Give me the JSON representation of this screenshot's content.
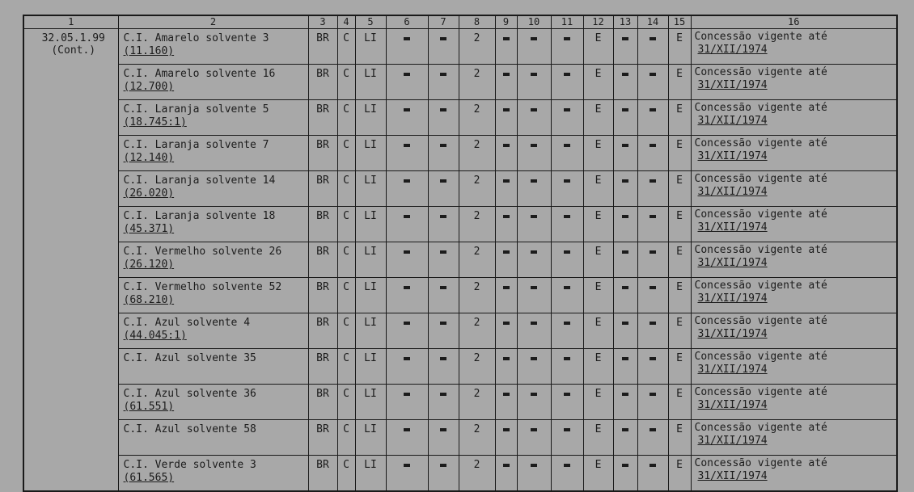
{
  "headers": [
    "1",
    "2",
    "3",
    "4",
    "5",
    "6",
    "7",
    "8",
    "9",
    "10",
    "11",
    "12",
    "13",
    "14",
    "15",
    "16"
  ],
  "group": {
    "code": "32.05.1.99",
    "note": "(Cont.)"
  },
  "columns_common": {
    "c3": "BR",
    "c4": "C",
    "c5": "LI",
    "c8": "2",
    "c12": "E",
    "c15": "E",
    "dash": "-"
  },
  "rows": [
    {
      "name": "C.I. Amarelo solvente 3",
      "code": "(11.160)"
    },
    {
      "name": "C.I. Amarelo solvente 16",
      "code": "(12.700)"
    },
    {
      "name": "C.I. Laranja solvente 5",
      "code": "(18.745:1)"
    },
    {
      "name": "C.I. Laranja solvente 7",
      "code": "(12.140)"
    },
    {
      "name": "C.I. Laranja solvente 14",
      "code": "(26.020)"
    },
    {
      "name": "C.I. Laranja solvente 18",
      "code": "(45.371)"
    },
    {
      "name": "C.I. Vermelho solvente 26",
      "code": "(26.120)"
    },
    {
      "name": "C.I. Vermelho solvente 52",
      "code": "(68.210)"
    },
    {
      "name": "C.I. Azul solvente 4",
      "code": "(44.045:1)"
    },
    {
      "name": "C.I. Azul solvente 35",
      "code": ""
    },
    {
      "name": "C.I. Azul solvente 36",
      "code": "(61.551)"
    },
    {
      "name": "C.I. Azul solvente 58",
      "code": ""
    },
    {
      "name": "C.I. Verde solvente 3",
      "code": "(61.565)"
    }
  ],
  "note_text": "Concessão vigente  até",
  "note_date": "31/XII/1974"
}
